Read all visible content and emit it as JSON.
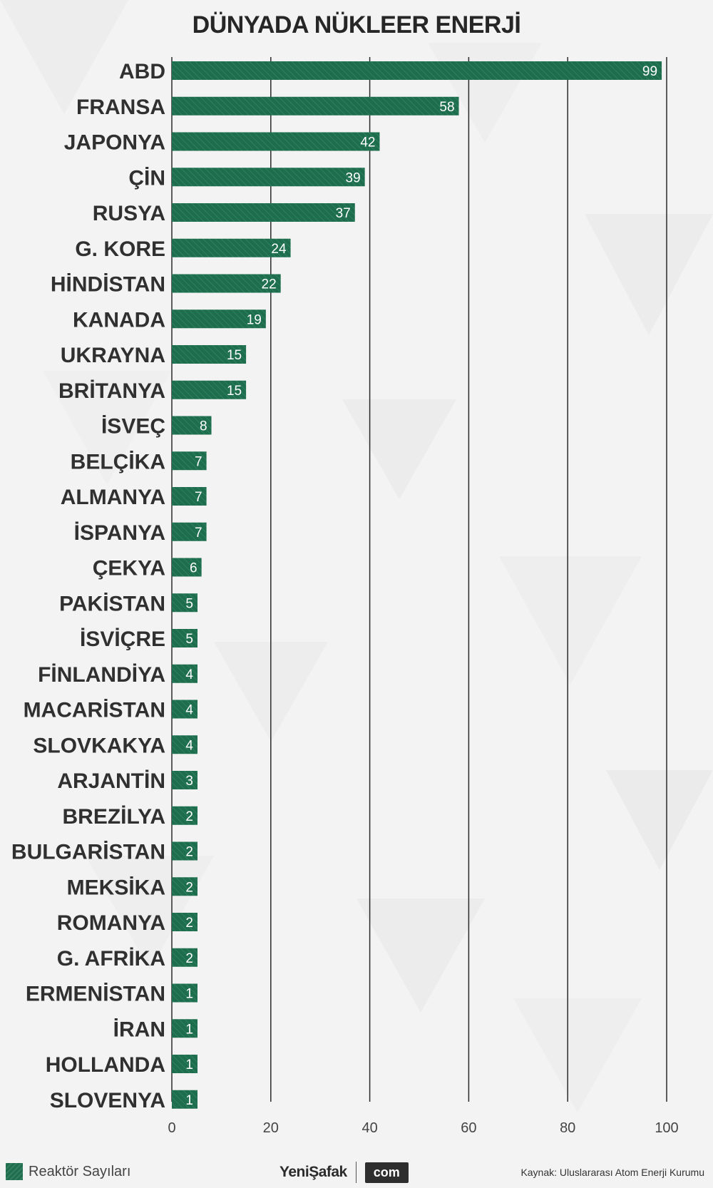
{
  "chart_data": {
    "type": "bar",
    "orientation": "horizontal",
    "title": "DÜNYADA NÜKLEER ENERJİ",
    "categories": [
      "ABD",
      "FRANSA",
      "JAPONYA",
      "ÇİN",
      "RUSYA",
      "G. KORE",
      "HİNDİSTAN",
      "KANADA",
      "UKRAYNA",
      "BRİTANYA",
      "İSVEÇ",
      "BELÇİKA",
      "ALMANYA",
      "İSPANYA",
      "ÇEKYA",
      "PAKİSTAN",
      "İSVİÇRE",
      "FİNLANDİYA",
      "MACARİSTAN",
      "SLOVKAKYA",
      "ARJANTİN",
      "BREZİLYA",
      "BULGARİSTAN",
      "MEKSİKA",
      "ROMANYA",
      "G. AFRİKA",
      "ERMENİSTAN",
      "İRAN",
      "HOLLANDA",
      "SLOVENYA"
    ],
    "series": [
      {
        "name": "Reaktör Sayıları",
        "values": [
          99,
          58,
          42,
          39,
          37,
          24,
          22,
          19,
          15,
          15,
          8,
          7,
          7,
          7,
          6,
          5,
          5,
          4,
          4,
          4,
          3,
          2,
          2,
          2,
          2,
          2,
          1,
          1,
          1,
          1
        ]
      }
    ],
    "xlim": [
      0,
      100
    ],
    "xticks": [
      0,
      20,
      40,
      60,
      80,
      100
    ],
    "grid": true,
    "legend": "bottom-left",
    "bar_color": "#1e6e4e"
  },
  "footer": {
    "legend_label": "Reaktör Sayıları",
    "brand": "YeniŞafak",
    "brand_suffix": "com",
    "source": "Kaynak: Uluslararası Atom Enerji Kurumu"
  }
}
